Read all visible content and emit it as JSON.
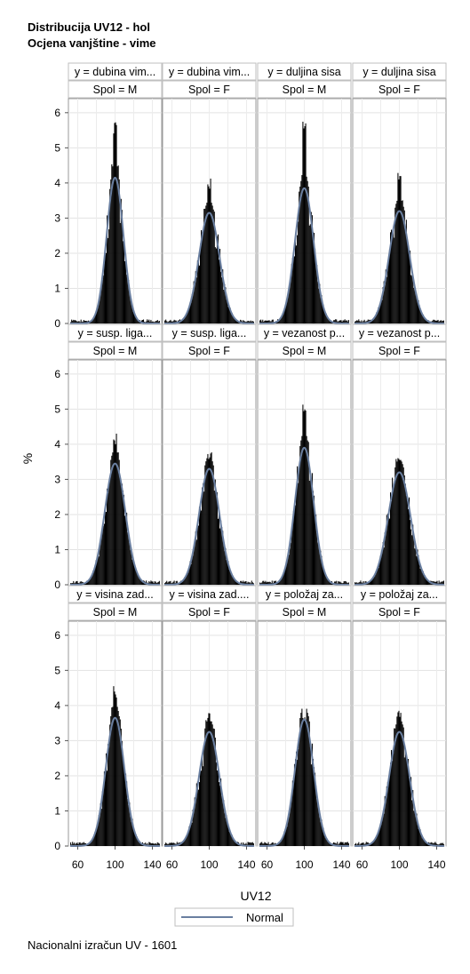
{
  "titles": [
    "Distribucija UV12 - hol",
    "Ocjena vanjštine - vime"
  ],
  "footnote": "Nacionalni izračun UV - 1601",
  "chart_data": {
    "type": "histogram-panel",
    "xlabel": "UV12",
    "ylabel": "%",
    "xlim": [
      50,
      150
    ],
    "ylim": [
      0,
      6.4
    ],
    "x_ticks": [
      60,
      100,
      140
    ],
    "y_ticks": [
      0,
      1,
      2,
      3,
      4,
      5,
      6
    ],
    "legend": {
      "position": "bottom",
      "entries": [
        {
          "label": "Normal",
          "color": "#6a7fa0"
        }
      ]
    },
    "grid": true,
    "column_headers": [
      "Spol = M",
      "Spol = F",
      "Spol = M",
      "Spol = F"
    ],
    "panels": [
      {
        "y_label": "y = dubina vim...",
        "spol": "Spol = M",
        "normal_peak": 4.15,
        "hist_max": 5.75,
        "sigma": 9
      },
      {
        "y_label": "y = dubina vim...",
        "spol": "Spol = F",
        "normal_peak": 3.15,
        "hist_max": 4.15,
        "sigma": 11
      },
      {
        "y_label": "y = duljina sisa",
        "spol": "Spol = M",
        "normal_peak": 3.85,
        "hist_max": 6.0,
        "sigma": 10
      },
      {
        "y_label": "y = duljina sisa",
        "spol": "Spol = F",
        "normal_peak": 3.2,
        "hist_max": 4.3,
        "sigma": 11
      },
      {
        "y_label": "y = susp. liga...",
        "spol": "Spol = M",
        "normal_peak": 3.45,
        "hist_max": 4.35,
        "sigma": 11
      },
      {
        "y_label": "y = susp. liga...",
        "spol": "Spol = F",
        "normal_peak": 3.3,
        "hist_max": 3.85,
        "sigma": 11
      },
      {
        "y_label": "y = vezanost p...",
        "spol": "Spol = M",
        "normal_peak": 3.9,
        "hist_max": 5.3,
        "sigma": 10
      },
      {
        "y_label": "y = vezanost p...",
        "spol": "Spol = F",
        "normal_peak": 3.2,
        "hist_max": 3.75,
        "sigma": 12
      },
      {
        "y_label": "y = visina zad...",
        "spol": "Spol = M",
        "normal_peak": 3.65,
        "hist_max": 4.55,
        "sigma": 10
      },
      {
        "y_label": "y = visina zad....",
        "spol": "Spol = F",
        "normal_peak": 3.25,
        "hist_max": 3.8,
        "sigma": 11
      },
      {
        "y_label": "y = položaj za...",
        "spol": "Spol = M",
        "normal_peak": 3.6,
        "hist_max": 3.75,
        "sigma": 10
      },
      {
        "y_label": "y = položaj za...",
        "spol": "Spol = F",
        "normal_peak": 3.25,
        "hist_max": 3.9,
        "sigma": 11
      }
    ]
  }
}
